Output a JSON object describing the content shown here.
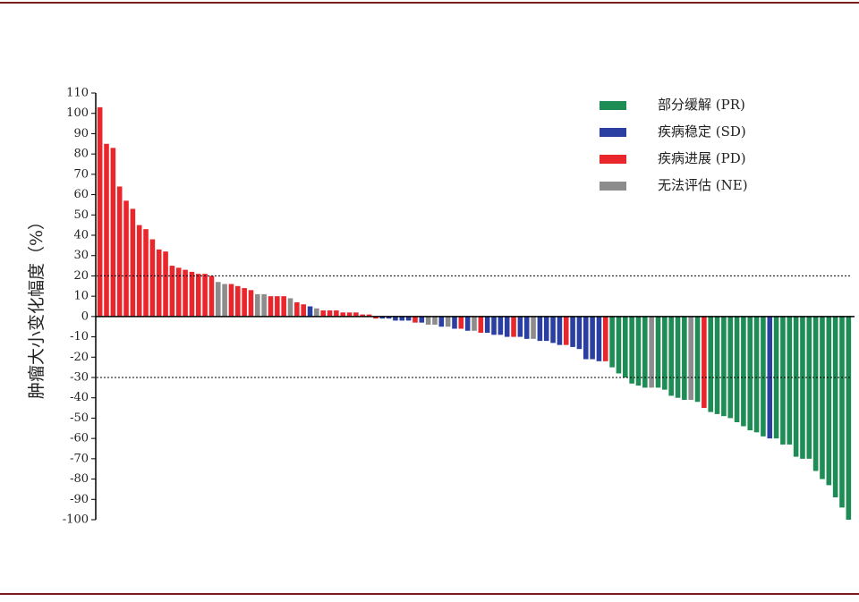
{
  "chart_data": {
    "type": "waterfall",
    "y_label": "肿瘤大小变化幅度（%）",
    "ylim": [
      -100,
      110
    ],
    "yticks": [
      -100,
      -90,
      -80,
      -70,
      -60,
      -50,
      -40,
      -30,
      -20,
      -10,
      0,
      10,
      20,
      30,
      40,
      50,
      60,
      70,
      80,
      90,
      100,
      110
    ],
    "reference_lines": [
      20,
      -30
    ],
    "legend": [
      {
        "name": "部分缓解 (PR)",
        "color": "#1e8c55"
      },
      {
        "name": "疾病稳定 (SD)",
        "color": "#2b3fa3"
      },
      {
        "name": "疾病进展 (PD)",
        "color": "#e8262c"
      },
      {
        "name": "无法评估 (NE)",
        "color": "#8c8c8c"
      }
    ],
    "values": [
      103,
      85,
      83,
      64,
      57,
      53,
      45,
      43,
      38,
      33,
      32,
      25,
      24,
      23,
      22,
      21,
      21,
      20,
      17,
      16,
      16,
      15,
      14,
      13,
      11,
      11,
      10,
      10,
      10,
      9,
      7,
      6,
      5,
      4,
      3,
      3,
      3,
      2,
      2,
      2,
      1,
      1,
      -1,
      -1,
      -1,
      -2,
      -2,
      -2,
      -3,
      -3,
      -4,
      -4,
      -5,
      -5,
      -6,
      -6,
      -7,
      -7,
      -8,
      -8,
      -9,
      -9,
      -10,
      -10,
      -10,
      -11,
      -11,
      -12,
      -12,
      -13,
      -14,
      -14,
      -15,
      -16,
      -21,
      -21,
      -22,
      -22,
      -25,
      -28,
      -30,
      -33,
      -34,
      -35,
      -35,
      -35,
      -36,
      -39,
      -40,
      -41,
      -41,
      -42,
      -45,
      -47,
      -48,
      -49,
      -50,
      -52,
      -54,
      -56,
      -57,
      -59,
      -60,
      -60,
      -63,
      -63,
      -69,
      -70,
      -70,
      -76,
      -80,
      -83,
      -89,
      -94,
      -100
    ],
    "colors": [
      "#e8262c",
      "#e8262c",
      "#e8262c",
      "#e8262c",
      "#e8262c",
      "#e8262c",
      "#e8262c",
      "#e8262c",
      "#e8262c",
      "#e8262c",
      "#e8262c",
      "#e8262c",
      "#e8262c",
      "#e8262c",
      "#e8262c",
      "#e8262c",
      "#e8262c",
      "#e8262c",
      "#8c8c8c",
      "#8c8c8c",
      "#e8262c",
      "#e8262c",
      "#e8262c",
      "#e8262c",
      "#8c8c8c",
      "#8c8c8c",
      "#e8262c",
      "#e8262c",
      "#e8262c",
      "#8c8c8c",
      "#e8262c",
      "#e8262c",
      "#2b3fa3",
      "#8c8c8c",
      "#e8262c",
      "#e8262c",
      "#e8262c",
      "#e8262c",
      "#e8262c",
      "#e8262c",
      "#e8262c",
      "#e8262c",
      "#e8262c",
      "#2b3fa3",
      "#2b3fa3",
      "#2b3fa3",
      "#2b3fa3",
      "#2b3fa3",
      "#e8262c",
      "#2b3fa3",
      "#8c8c8c",
      "#8c8c8c",
      "#2b3fa3",
      "#8c8c8c",
      "#2b3fa3",
      "#e8262c",
      "#2b3fa3",
      "#8c8c8c",
      "#e8262c",
      "#2b3fa3",
      "#2b3fa3",
      "#2b3fa3",
      "#2b3fa3",
      "#e8262c",
      "#2b3fa3",
      "#2b3fa3",
      "#8c8c8c",
      "#2b3fa3",
      "#2b3fa3",
      "#2b3fa3",
      "#2b3fa3",
      "#e8262c",
      "#2b3fa3",
      "#2b3fa3",
      "#2b3fa3",
      "#2b3fa3",
      "#2b3fa3",
      "#e8262c",
      "#1e8c55",
      "#1e8c55",
      "#1e8c55",
      "#1e8c55",
      "#1e8c55",
      "#1e8c55",
      "#8c8c8c",
      "#1e8c55",
      "#1e8c55",
      "#1e8c55",
      "#1e8c55",
      "#1e8c55",
      "#8c8c8c",
      "#1e8c55",
      "#e8262c",
      "#1e8c55",
      "#1e8c55",
      "#1e8c55",
      "#1e8c55",
      "#1e8c55",
      "#1e8c55",
      "#1e8c55",
      "#1e8c55",
      "#1e8c55",
      "#2b3fa3",
      "#1e8c55",
      "#1e8c55",
      "#1e8c55",
      "#1e8c55",
      "#1e8c55",
      "#1e8c55",
      "#1e8c55",
      "#1e8c55",
      "#1e8c55",
      "#1e8c55",
      "#1e8c55",
      "#1e8c55"
    ]
  }
}
